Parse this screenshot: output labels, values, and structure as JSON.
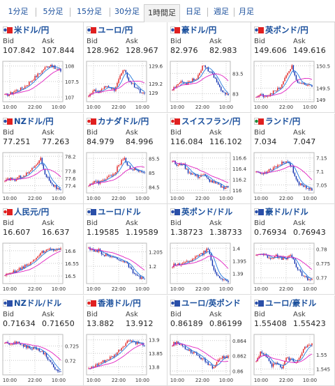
{
  "tabs": [
    {
      "label": "1分足",
      "active": false
    },
    {
      "label": "5分足",
      "active": false
    },
    {
      "label": "15分足",
      "active": false
    },
    {
      "label": "30分足",
      "active": false
    },
    {
      "label": "1時間足",
      "active": true
    },
    {
      "label": "日足",
      "active": false
    },
    {
      "label": "週足",
      "active": false
    },
    {
      "label": "月足",
      "active": false
    }
  ],
  "labels": {
    "bid": "Bid",
    "ask": "Ask"
  },
  "colors": {
    "up": "#e02020",
    "down": "#1030b0",
    "ma_fast": "#2277dd",
    "ma_slow": "#e020c0",
    "grid": "#c8c8c8",
    "link": "#1a4f9c"
  },
  "pairs": [
    {
      "name": "米ドル/円",
      "flags": [
        "#2a4fa8",
        "#e02020"
      ],
      "bid": "107.842",
      "ask": "107.844",
      "chart_data": {
        "type": "candlestick",
        "x_ticks": [
          "10:00",
          "22:00",
          "10:00"
        ],
        "y_ticks": [
          "108",
          "107.5",
          "107"
        ],
        "ylim": [
          106.85,
          108.15
        ],
        "trend": [
          107.05,
          107.1,
          107.2,
          107.25,
          107.35,
          107.5,
          107.65,
          107.8,
          107.95,
          108.05,
          107.9,
          107.85
        ]
      }
    },
    {
      "name": "ユーロ/円",
      "flags": [
        "#2a4fa8",
        "#e02020"
      ],
      "bid": "128.962",
      "ask": "128.967",
      "chart_data": {
        "type": "candlestick",
        "x_ticks": [
          "10:00",
          "22:00",
          "10:00"
        ],
        "y_ticks": [
          "129.6",
          "129.2",
          "129"
        ],
        "ylim": [
          128.8,
          129.7
        ],
        "trend": [
          128.95,
          129.05,
          129.0,
          129.1,
          129.15,
          129.05,
          129.3,
          129.55,
          129.25,
          129.15,
          129.05,
          128.95
        ]
      }
    },
    {
      "name": "豪ドル/円",
      "flags": [
        "#2a4fa8",
        "#e02020"
      ],
      "bid": "82.976",
      "ask": "82.983",
      "chart_data": {
        "type": "candlestick",
        "x_ticks": [
          "10:00",
          "22:00",
          "10:00"
        ],
        "y_ticks": [
          "83.5",
          "83"
        ],
        "ylim": [
          82.8,
          83.8
        ],
        "trend": [
          83.1,
          83.2,
          83.3,
          83.25,
          83.35,
          83.4,
          83.7,
          83.6,
          83.45,
          83.2,
          83.05,
          82.95
        ]
      }
    },
    {
      "name": "英ポンド/円",
      "flags": [
        "#2a4fa8",
        "#e02020"
      ],
      "bid": "149.606",
      "ask": "149.616",
      "chart_data": {
        "type": "candlestick",
        "x_ticks": [
          "10:00",
          "22:00",
          "10:00"
        ],
        "y_ticks": [
          "150.5",
          "149.5",
          "149"
        ],
        "ylim": [
          148.9,
          150.7
        ],
        "trend": [
          149.1,
          149.2,
          149.15,
          149.3,
          149.4,
          149.6,
          150.1,
          150.5,
          149.8,
          149.7,
          149.6,
          149.6
        ]
      }
    },
    {
      "name": "NZドル/円",
      "flags": [
        "#2a4fa8",
        "#e02020"
      ],
      "bid": "77.251",
      "ask": "77.263",
      "chart_data": {
        "type": "candlestick",
        "x_ticks": [
          "10:00",
          "22:00",
          "10:00"
        ],
        "y_ticks": [
          "78.2",
          "77.8",
          "77.6",
          "77.4"
        ],
        "ylim": [
          77.2,
          78.3
        ],
        "trend": [
          77.5,
          77.6,
          77.55,
          77.65,
          77.7,
          77.8,
          77.95,
          78.15,
          77.7,
          77.5,
          77.35,
          77.25
        ]
      }
    },
    {
      "name": "カナダドル/円",
      "flags": [
        "#e02020",
        "#e02020"
      ],
      "bid": "84.979",
      "ask": "84.996",
      "chart_data": {
        "type": "candlestick",
        "x_ticks": [
          "10:00",
          "22:00",
          "10:00"
        ],
        "y_ticks": [
          "85.5",
          "85",
          "84.5"
        ],
        "ylim": [
          84.3,
          85.7
        ],
        "trend": [
          84.6,
          84.7,
          84.65,
          84.8,
          84.85,
          84.95,
          85.3,
          85.5,
          85.2,
          85.1,
          85.05,
          84.98
        ]
      }
    },
    {
      "name": "スイスフラン/円",
      "flags": [
        "#e02020",
        "#e02020"
      ],
      "bid": "116.084",
      "ask": "116.102",
      "chart_data": {
        "type": "candlestick",
        "x_ticks": [
          "10:00",
          "22:00",
          "10:00"
        ],
        "y_ticks": [
          "116.6",
          "116.4",
          "116.2",
          "116"
        ],
        "ylim": [
          115.95,
          116.7
        ],
        "trend": [
          116.55,
          116.45,
          116.5,
          116.35,
          116.3,
          116.25,
          116.3,
          116.2,
          116.15,
          116.1,
          116.05,
          116.08
        ]
      }
    },
    {
      "name": "ランド/円",
      "flags": [
        "#1e8a3a",
        "#e02020"
      ],
      "bid": "7.034",
      "ask": "7.047",
      "chart_data": {
        "type": "candlestick",
        "x_ticks": [
          "10:00",
          "22:00",
          "10:00"
        ],
        "y_ticks": [
          "7.15",
          "7.1",
          "7.05"
        ],
        "ylim": [
          7.02,
          7.17
        ],
        "trend": [
          7.1,
          7.09,
          7.1,
          7.11,
          7.12,
          7.13,
          7.14,
          7.12,
          7.06,
          7.05,
          7.04,
          7.035
        ]
      }
    },
    {
      "name": "人民元/円",
      "flags": [
        "#e02020",
        "#e02020"
      ],
      "bid": "16.607",
      "ask": "16.637",
      "chart_data": {
        "type": "candlestick",
        "x_ticks": [
          "10:00",
          "22:00",
          "10:00"
        ],
        "y_ticks": [
          "16.6",
          "16.55",
          "16.5"
        ],
        "ylim": [
          16.47,
          16.63
        ],
        "trend": [
          16.5,
          16.51,
          16.52,
          16.53,
          16.54,
          16.55,
          16.57,
          16.59,
          16.6,
          16.61,
          16.6,
          16.607
        ]
      }
    },
    {
      "name": "ユーロ/ドル",
      "flags": [
        "#2a4fa8",
        "#2a4fa8"
      ],
      "bid": "1.19585",
      "ask": "1.19589",
      "chart_data": {
        "type": "candlestick",
        "x_ticks": [
          "10:00",
          "22:00",
          "10:00"
        ],
        "y_ticks": [
          "1.205",
          "1.2"
        ],
        "ylim": [
          1.194,
          1.208
        ],
        "trend": [
          1.206,
          1.205,
          1.2055,
          1.204,
          1.2035,
          1.203,
          1.2025,
          1.2015,
          1.2,
          1.197,
          1.196,
          1.1958
        ]
      }
    },
    {
      "name": "英ポンド/ドル",
      "flags": [
        "#2a4fa8",
        "#2a4fa8"
      ],
      "bid": "1.38723",
      "ask": "1.38733",
      "chart_data": {
        "type": "candlestick",
        "x_ticks": [
          "10:00",
          "22:00",
          "10:00"
        ],
        "y_ticks": [
          "1.4",
          "1.395",
          "1.39"
        ],
        "ylim": [
          1.386,
          1.402
        ],
        "trend": [
          1.393,
          1.394,
          1.3935,
          1.395,
          1.396,
          1.397,
          1.398,
          1.4,
          1.392,
          1.389,
          1.3875,
          1.3872
        ]
      }
    },
    {
      "name": "豪ドル/ドル",
      "flags": [
        "#2a4fa8",
        "#2a4fa8"
      ],
      "bid": "0.76934",
      "ask": "0.76943",
      "chart_data": {
        "type": "candlestick",
        "x_ticks": [
          "10:00",
          "22:00",
          "10:00"
        ],
        "y_ticks": [
          "0.78",
          "0.775",
          "0.77"
        ],
        "ylim": [
          0.768,
          0.782
        ],
        "trend": [
          0.778,
          0.7785,
          0.7775,
          0.777,
          0.7775,
          0.7765,
          0.777,
          0.7775,
          0.7735,
          0.771,
          0.7698,
          0.7693
        ]
      }
    },
    {
      "name": "NZドル/ドル",
      "flags": [
        "#2a4fa8",
        "#2a4fa8"
      ],
      "bid": "0.71634",
      "ask": "0.71650",
      "chart_data": {
        "type": "candlestick",
        "x_ticks": [
          "10:00",
          "22:00",
          "10:00"
        ],
        "y_ticks": [
          "0.725",
          "0.72"
        ],
        "ylim": [
          0.715,
          0.729
        ],
        "trend": [
          0.726,
          0.7255,
          0.7262,
          0.7258,
          0.725,
          0.7245,
          0.724,
          0.7235,
          0.722,
          0.719,
          0.717,
          0.7163
        ]
      }
    },
    {
      "name": "香港ドル/円",
      "flags": [
        "#e02020",
        "#e02020"
      ],
      "bid": "13.882",
      "ask": "13.912",
      "chart_data": {
        "type": "candlestick",
        "x_ticks": [
          "10:00",
          "22:00",
          "10:00"
        ],
        "y_ticks": [
          "13.9",
          "13.85",
          "13.8"
        ],
        "ylim": [
          13.77,
          13.92
        ],
        "trend": [
          13.79,
          13.8,
          13.81,
          13.82,
          13.83,
          13.84,
          13.86,
          13.88,
          13.9,
          13.89,
          13.885,
          13.882
        ]
      }
    },
    {
      "name": "ユーロ/英ポンド",
      "flags": [
        "#2a4fa8",
        "#2a4fa8"
      ],
      "bid": "0.86189",
      "ask": "0.86199",
      "chart_data": {
        "type": "candlestick",
        "x_ticks": [
          "10:00",
          "22:00",
          "10:00"
        ],
        "y_ticks": [
          "0.864",
          "0.862",
          "0.86"
        ],
        "ylim": [
          0.8595,
          0.8648
        ],
        "trend": [
          0.8635,
          0.8638,
          0.8632,
          0.8628,
          0.8625,
          0.862,
          0.8615,
          0.861,
          0.8605,
          0.8615,
          0.8618,
          0.8619
        ]
      }
    },
    {
      "name": "ユーロ/豪ドル",
      "flags": [
        "#2a4fa8",
        "#2a4fa8"
      ],
      "bid": "1.55408",
      "ask": "1.55423",
      "chart_data": {
        "type": "candlestick",
        "x_ticks": [
          "10:00",
          "22:00",
          "10:00"
        ],
        "y_ticks": [
          "1.55",
          "1.545"
        ],
        "ylim": [
          1.543,
          1.557
        ],
        "trend": [
          1.548,
          1.551,
          1.549,
          1.546,
          1.547,
          1.545,
          1.549,
          1.548,
          1.547,
          1.551,
          1.553,
          1.554
        ]
      }
    }
  ]
}
